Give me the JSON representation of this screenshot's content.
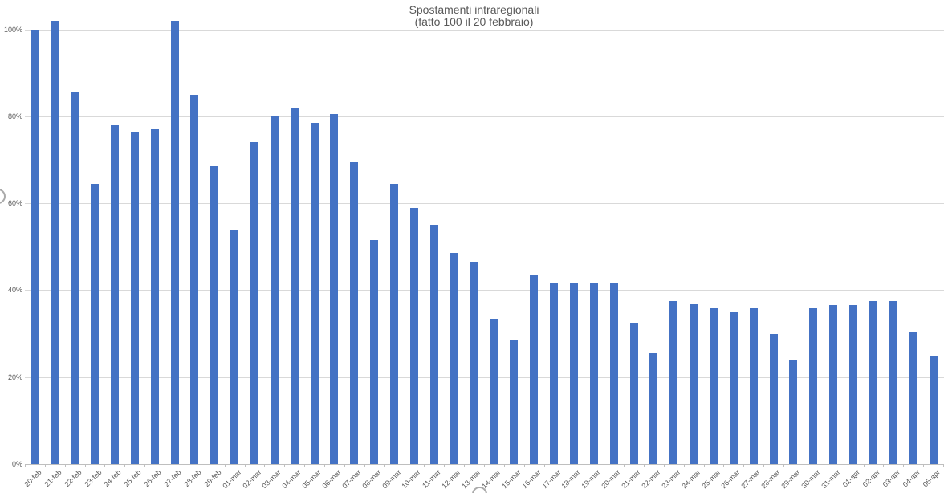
{
  "title": {
    "line1": "Spostamenti intraregionali",
    "line2": "(fatto 100 il 20 febbraio)"
  },
  "colors": {
    "bar": "#4472c4",
    "gridline": "#d9d9d9",
    "axis_line": "#bfbfbf",
    "axis_label": "#595959",
    "title_text": "#595959"
  },
  "y_axis": {
    "tick_labels": [
      "0%",
      "20%",
      "40%",
      "60%",
      "80%",
      "100%"
    ],
    "tick_values": [
      0,
      20,
      40,
      60,
      80,
      100
    ]
  },
  "chart_data": {
    "type": "bar",
    "title": "Spostamenti intraregionali",
    "subtitle": "(fatto 100 il 20 febbraio)",
    "xlabel": "",
    "ylabel": "",
    "ylim": [
      0,
      104
    ],
    "grid": true,
    "legend": false,
    "categories": [
      "20-feb",
      "21-feb",
      "22-feb",
      "23-feb",
      "24-feb",
      "25-feb",
      "26-feb",
      "27-feb",
      "28-feb",
      "29-feb",
      "01-mar",
      "02-mar",
      "03-mar",
      "04-mar",
      "05-mar",
      "06-mar",
      "07-mar",
      "08-mar",
      "09-mar",
      "10-mar",
      "11-mar",
      "12-mar",
      "13-mar",
      "14-mar",
      "15-mar",
      "16-mar",
      "17-mar",
      "18-mar",
      "19-mar",
      "20-mar",
      "21-mar",
      "22-mar",
      "23-mar",
      "24-mar",
      "25-mar",
      "26-mar",
      "27-mar",
      "28-mar",
      "29-mar",
      "30-mar",
      "31-mar",
      "01-apr",
      "02-apr",
      "03-apr",
      "04-apr",
      "05-apr"
    ],
    "values": [
      100,
      102,
      85.5,
      64.5,
      78,
      76.5,
      77,
      102,
      85,
      68.5,
      54,
      74,
      80,
      82,
      78.5,
      80.5,
      69.5,
      51.5,
      64.5,
      59,
      55,
      48.5,
      46.5,
      33.5,
      28.5,
      43.5,
      41.5,
      41.5,
      41.5,
      41.5,
      32.5,
      25.5,
      37.5,
      37,
      36,
      35,
      36,
      30,
      24,
      36,
      36.5,
      36.5,
      37.5,
      37.5,
      30.5,
      25
    ]
  }
}
